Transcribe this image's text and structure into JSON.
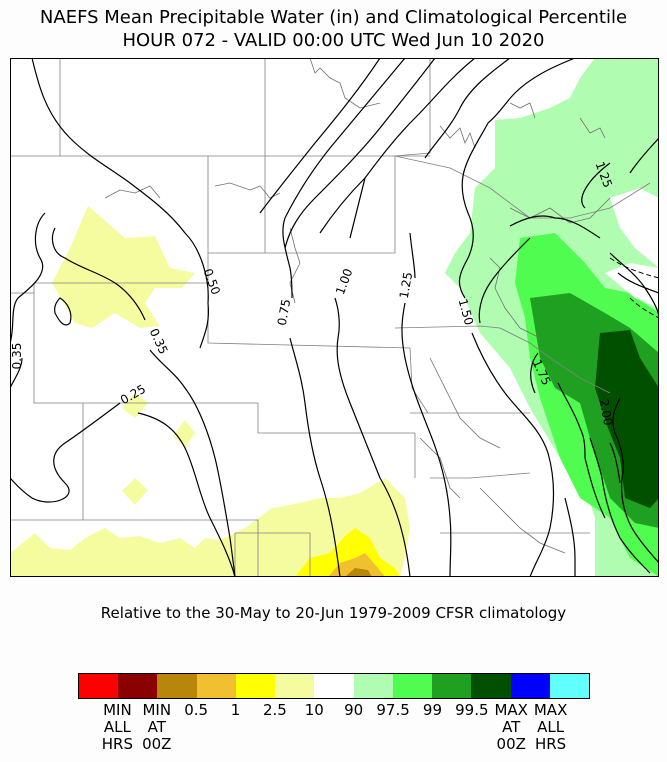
{
  "title": {
    "line1": "NAEFS Mean Precipitable Water (in) and Climatological Percentile",
    "line2": "HOUR 072 - VALID 00:00 UTC Wed Jun 10 2020"
  },
  "subtitle": "Relative to the 30-May to 20-Jun 1979-2009 CFSR climatology",
  "contour_labels": [
    "0.35",
    "0.50",
    "0.35",
    "0.25",
    "0.75",
    "1.00",
    "1.25",
    "1.50",
    "1.75",
    "2.00",
    "1.25"
  ],
  "colorbar": {
    "colors": [
      "#ff0000",
      "#8b0000",
      "#b8860b",
      "#f0c030",
      "#ffff00",
      "#f5fca0",
      "#ffffff",
      "#b0fcb0",
      "#50fc50",
      "#20a020",
      "#005000",
      "#0000ff",
      "#60fefe"
    ],
    "labels": [
      {
        "text": "MIN\nALL\nHRS",
        "boundary": 0.5
      },
      {
        "text": "MIN\nAT\n00Z",
        "boundary": 1.5
      },
      {
        "text": "0.5",
        "boundary": 2.5
      },
      {
        "text": "1",
        "boundary": 3.5
      },
      {
        "text": "2.5",
        "boundary": 4.5
      },
      {
        "text": "10",
        "boundary": 5.5
      },
      {
        "text": "90",
        "boundary": 6.5
      },
      {
        "text": "97.5",
        "boundary": 7.5
      },
      {
        "text": "99",
        "boundary": 8.5
      },
      {
        "text": "99.5",
        "boundary": 9.5
      },
      {
        "text": "MAX\nAT\n00Z",
        "boundary": 10.5
      },
      {
        "text": "MAX\nALL\nHRS",
        "boundary": 11.5
      }
    ]
  }
}
